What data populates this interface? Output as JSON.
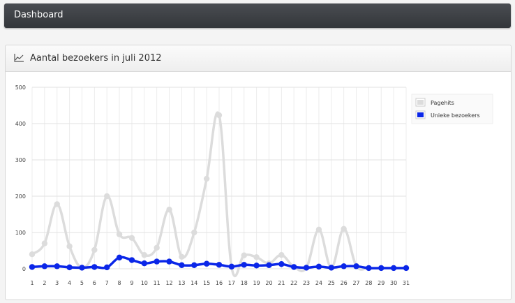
{
  "header": {
    "title": "Dashboard"
  },
  "widget": {
    "title": "Aantal bezoekers in juli 2012",
    "icon": "line-chart-icon"
  },
  "chart_data": {
    "type": "line",
    "title": "",
    "xlabel": "",
    "ylabel": "",
    "ylim": [
      0,
      500
    ],
    "yticks": [
      0,
      100,
      200,
      300,
      400,
      500
    ],
    "categories": [
      "1",
      "2",
      "3",
      "4",
      "5",
      "6",
      "7",
      "8",
      "9",
      "10",
      "11",
      "12",
      "13",
      "14",
      "15",
      "16",
      "17",
      "18",
      "19",
      "20",
      "21",
      "22",
      "23",
      "24",
      "25",
      "26",
      "27",
      "28",
      "29",
      "30",
      "31"
    ],
    "grid": true,
    "legend_position": "top-right",
    "series": [
      {
        "name": "Pagehits",
        "color": "#dcdcdc",
        "values": [
          40,
          70,
          178,
          62,
          3,
          52,
          200,
          95,
          85,
          38,
          58,
          163,
          33,
          100,
          248,
          423,
          5,
          37,
          32,
          15,
          38,
          5,
          3,
          108,
          3,
          110,
          8,
          2,
          2,
          2,
          2
        ]
      },
      {
        "name": "Unieke bezoekers",
        "color": "#0a26e8",
        "values": [
          5,
          7,
          7,
          4,
          3,
          5,
          4,
          31,
          24,
          15,
          20,
          20,
          10,
          10,
          14,
          11,
          6,
          11,
          9,
          10,
          13,
          5,
          3,
          6,
          3,
          7,
          7,
          2,
          2,
          2,
          2
        ]
      }
    ]
  }
}
